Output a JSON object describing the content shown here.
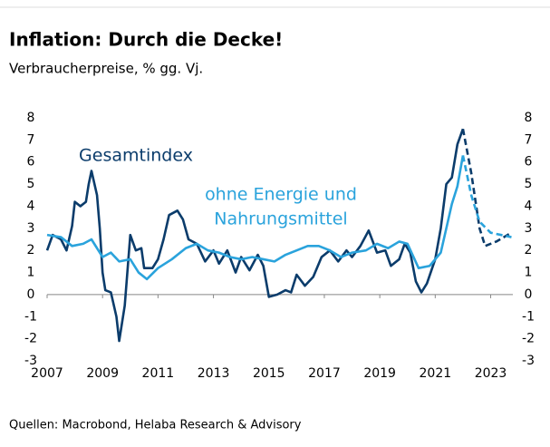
{
  "chart_data": {
    "type": "line",
    "title": "Inflation: Durch die Decke!",
    "subtitle": "Verbraucherpreise, % gg. Vj.",
    "source": "Quellen: Macrobond, Helaba Research & Advisory",
    "xlim": [
      2007,
      2023.8
    ],
    "xticks": [
      2007,
      2009,
      2011,
      2013,
      2015,
      2017,
      2019,
      2021,
      2023
    ],
    "ylim": [
      -3,
      8
    ],
    "yticks": [
      -3,
      -2,
      -1,
      0,
      1,
      2,
      3,
      4,
      5,
      6,
      7,
      8
    ],
    "y2ticks": [
      -3,
      -2,
      -1,
      0,
      1,
      2,
      3,
      4,
      5,
      6,
      7,
      8
    ],
    "forecast_start": 2022.0,
    "series": [
      {
        "label_lines": [
          "Gesamtindex"
        ],
        "color": "#0b3c6b",
        "x": [
          2007.0,
          2007.2,
          2007.5,
          2007.7,
          2007.9,
          2008.0,
          2008.2,
          2008.4,
          2008.5,
          2008.6,
          2008.8,
          2008.9,
          2009.0,
          2009.1,
          2009.3,
          2009.5,
          2009.6,
          2009.8,
          2010.0,
          2010.2,
          2010.4,
          2010.5,
          2010.8,
          2011.0,
          2011.2,
          2011.4,
          2011.7,
          2011.9,
          2012.1,
          2012.4,
          2012.7,
          2013.0,
          2013.2,
          2013.5,
          2013.8,
          2014.0,
          2014.3,
          2014.6,
          2014.8,
          2015.0,
          2015.3,
          2015.6,
          2015.8,
          2016.0,
          2016.3,
          2016.6,
          2016.9,
          2017.2,
          2017.5,
          2017.8,
          2018.0,
          2018.3,
          2018.6,
          2018.9,
          2019.2,
          2019.4,
          2019.7,
          2019.9,
          2020.1,
          2020.3,
          2020.5,
          2020.7,
          2021.0,
          2021.2,
          2021.4,
          2021.6,
          2021.8,
          2022.0,
          2022.3,
          2022.6,
          2022.8,
          2023.2,
          2023.75
        ],
        "values": [
          2.0,
          2.7,
          2.5,
          2.0,
          3.1,
          4.2,
          4.0,
          4.2,
          5.0,
          5.6,
          4.5,
          3.0,
          1.0,
          0.2,
          0.1,
          -1.0,
          -2.1,
          -0.5,
          2.7,
          2.0,
          2.1,
          1.2,
          1.2,
          1.6,
          2.5,
          3.6,
          3.8,
          3.4,
          2.5,
          2.3,
          1.5,
          2.0,
          1.4,
          2.0,
          1.0,
          1.7,
          1.1,
          1.8,
          1.3,
          -0.1,
          0.0,
          0.2,
          0.1,
          0.9,
          0.4,
          0.8,
          1.7,
          2.0,
          1.5,
          2.0,
          1.7,
          2.2,
          2.9,
          1.9,
          2.0,
          1.3,
          1.6,
          2.3,
          1.9,
          0.6,
          0.1,
          0.5,
          1.6,
          3.0,
          5.0,
          5.3,
          6.8,
          7.5,
          5.5,
          3.0,
          2.2,
          2.4,
          2.8
        ]
      },
      {
        "label_lines": [
          "ohne Energie und",
          "Nahrungsmittel"
        ],
        "color": "#2aa3dc",
        "x": [
          2007.0,
          2007.5,
          2007.9,
          2008.3,
          2008.6,
          2009.0,
          2009.3,
          2009.6,
          2010.0,
          2010.3,
          2010.6,
          2011.0,
          2011.5,
          2012.0,
          2012.4,
          2012.8,
          2013.2,
          2013.6,
          2014.0,
          2014.4,
          2014.8,
          2015.2,
          2015.6,
          2016.0,
          2016.4,
          2016.8,
          2017.2,
          2017.6,
          2018.0,
          2018.5,
          2018.9,
          2019.3,
          2019.7,
          2020.0,
          2020.4,
          2020.8,
          2021.2,
          2021.6,
          2021.8,
          2022.0,
          2022.3,
          2022.6,
          2023.0,
          2023.75
        ],
        "values": [
          2.7,
          2.6,
          2.2,
          2.3,
          2.5,
          1.7,
          1.9,
          1.5,
          1.6,
          1.0,
          0.7,
          1.2,
          1.6,
          2.1,
          2.3,
          2.0,
          1.9,
          1.7,
          1.6,
          1.7,
          1.6,
          1.5,
          1.8,
          2.0,
          2.2,
          2.2,
          2.0,
          1.7,
          1.9,
          2.0,
          2.3,
          2.1,
          2.4,
          2.3,
          1.2,
          1.3,
          1.9,
          4.1,
          4.9,
          6.3,
          4.5,
          3.3,
          2.8,
          2.6
        ]
      }
    ]
  }
}
